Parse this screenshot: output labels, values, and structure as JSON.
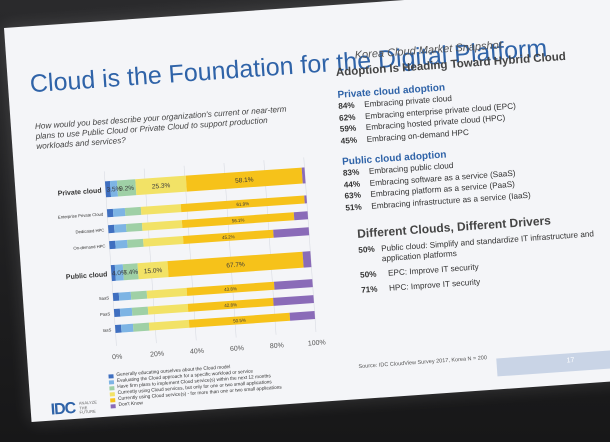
{
  "slide": {
    "title": "Cloud is the Foundation for the Digital Platform",
    "question": "How would you best describe your organization's current or near-term plans to use Public Cloud or Private Cloud to support production workloads and services?",
    "page_number": "17",
    "source": "Source: IDC CloudView Survey 2017, Korea N = 200",
    "logo": {
      "mark": "IDC",
      "sub": "ANALYZE THE FUTURE"
    }
  },
  "right": {
    "snapshot": "Korea Cloud Market Snapshot",
    "heading": "Adoption Is Heading Toward Hybrid Cloud",
    "private_title": "Private cloud adoption",
    "private_items": [
      {
        "pct": "84%",
        "text": "Embracing private cloud"
      },
      {
        "pct": "62%",
        "text": "Embracing enterprise private cloud (EPC)"
      },
      {
        "pct": "59%",
        "text": "Embracing hosted private cloud (HPC)"
      },
      {
        "pct": "45%",
        "text": "Embracing on-demand HPC"
      }
    ],
    "public_title": "Public cloud adoption",
    "public_items": [
      {
        "pct": "83%",
        "text": "Embracing public cloud"
      },
      {
        "pct": "44%",
        "text": "Embracing software as a service (SaaS)"
      },
      {
        "pct": "63%",
        "text": "Embracing platform as a service (PaaS)"
      },
      {
        "pct": "51%",
        "text": "Embracing infrastructure as a service (IaaS)"
      }
    ],
    "drivers_title": "Different Clouds, Different Drivers",
    "drivers": [
      {
        "pct": "50%",
        "text": "Public cloud: Simplify and standardize IT infrastructure and application platforms"
      },
      {
        "pct": "50%",
        "text": "EPC: Improve IT security"
      },
      {
        "pct": "71%",
        "text": "HPC: Improve IT security"
      }
    ]
  },
  "chart_data": {
    "type": "bar",
    "orientation": "horizontal",
    "stacked": true,
    "xlim": [
      0,
      100
    ],
    "x_ticks": [
      "0%",
      "20%",
      "40%",
      "60%",
      "80%",
      "100%"
    ],
    "categories": [
      "Private cloud",
      "Enterprise Private Cloud",
      "Dedicated HPC",
      "On-demand HPC",
      "Public cloud",
      "SaaS",
      "PaaS",
      "IaaS"
    ],
    "series": [
      {
        "name": "Generally educating ourselves about the Cloud model",
        "color": "#3f6fc0",
        "values": [
          2.5,
          3,
          3,
          3,
          2,
          3,
          3,
          3
        ]
      },
      {
        "name": "Evaluating the Cloud approach for a specific workload or service",
        "color": "#7db4e4",
        "values": [
          3.5,
          6,
          6,
          6,
          4,
          6,
          6,
          6
        ]
      },
      {
        "name": "Have firm plans to implement Cloud service(s) within the next 12 months",
        "color": "#9fd0a6",
        "values": [
          9.2,
          8,
          8,
          8,
          7.4,
          8,
          8,
          8
        ]
      },
      {
        "name": "Currently using Cloud services, but only for one or two small applications",
        "color": "#f2e266",
        "values": [
          25.3,
          20,
          20,
          20,
          15.0,
          20,
          20,
          20
        ]
      },
      {
        "name": "Currently using Cloud service(s) - for more than one or two small applications",
        "color": "#f6c21a",
        "values": [
          58.1,
          61.9,
          56.1,
          45.2,
          67.7,
          43.8,
          42.8,
          50.5
        ]
      },
      {
        "name": "Don't Know",
        "color": "#8a6bb8",
        "values": [
          1.4,
          1.1,
          6.9,
          17.8,
          3.9,
          19.2,
          20.2,
          12.5
        ]
      }
    ],
    "data_labels": [
      {
        "row": 0,
        "series": 1,
        "text": "3.5%"
      },
      {
        "row": 0,
        "series": 2,
        "text": "9.2%"
      },
      {
        "row": 0,
        "series": 3,
        "text": "25.3%"
      },
      {
        "row": 0,
        "series": 4,
        "text": "58.1%"
      },
      {
        "row": 1,
        "series": 4,
        "text": "61.9%"
      },
      {
        "row": 2,
        "series": 4,
        "text": "56.1%"
      },
      {
        "row": 3,
        "series": 4,
        "text": "45.2%"
      },
      {
        "row": 4,
        "series": 1,
        "text": "4.0%"
      },
      {
        "row": 4,
        "series": 2,
        "text": "7.4%"
      },
      {
        "row": 4,
        "series": 3,
        "text": "15.0%"
      },
      {
        "row": 4,
        "series": 4,
        "text": "67.7%"
      },
      {
        "row": 5,
        "series": 4,
        "text": "43.8%"
      },
      {
        "row": 6,
        "series": 4,
        "text": "42.8%"
      },
      {
        "row": 7,
        "series": 4,
        "text": "50.5%"
      }
    ]
  }
}
